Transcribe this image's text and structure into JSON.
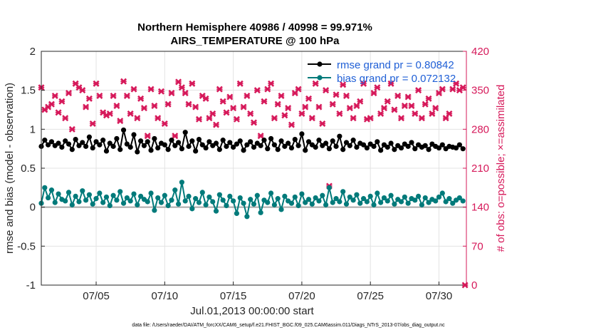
{
  "chart_data": {
    "type": "line",
    "title": "Northern Hemisphere 40986 / 40998 = 99.971%",
    "subtitle": "AIRS_TEMPERATURE @ 100 hPa",
    "xlabel": "Jul.01,2013 00:00:00 start",
    "ylabel": "rmse and bias (model - observation)",
    "ylabel_right": "# of obs: o=possible; ×=assimilated",
    "footer": "data file: /Users/raeder/DAI/ATM_forcXX/CAM6_setup/f.e21.FHIST_BGC.f09_025.CAM6assim.011/Diags_NTrS_2013-07/obs_diag_output.nc",
    "xlim": [
      1,
      32
    ],
    "ylim": [
      -1,
      2
    ],
    "ylim_right": [
      0,
      420
    ],
    "grid": true,
    "x_ticks": [
      5,
      10,
      15,
      20,
      25,
      30
    ],
    "x_tick_labels": [
      "07/05",
      "07/10",
      "07/15",
      "07/20",
      "07/25",
      "07/30"
    ],
    "y_ticks": [
      -1,
      -0.5,
      0,
      0.5,
      1,
      1.5,
      2
    ],
    "y_tick_labels": [
      "-1",
      "-0.5",
      "0",
      "0.5",
      "1",
      "1.5",
      "2"
    ],
    "y_ticks_right": [
      0,
      70,
      140,
      210,
      280,
      350,
      420
    ],
    "y_tick_labels_right": [
      "0",
      "70",
      "140",
      "210",
      "280",
      "350",
      "420"
    ],
    "x": [
      1.0,
      1.25,
      1.5,
      1.75,
      2.0,
      2.25,
      2.5,
      2.75,
      3.0,
      3.25,
      3.5,
      3.75,
      4.0,
      4.25,
      4.5,
      4.75,
      5.0,
      5.25,
      5.5,
      5.75,
      6.0,
      6.25,
      6.5,
      6.75,
      7.0,
      7.25,
      7.5,
      7.75,
      8.0,
      8.25,
      8.5,
      8.75,
      9.0,
      9.25,
      9.5,
      9.75,
      10.0,
      10.25,
      10.5,
      10.75,
      11.0,
      11.25,
      11.5,
      11.75,
      12.0,
      12.25,
      12.5,
      12.75,
      13.0,
      13.25,
      13.5,
      13.75,
      14.0,
      14.25,
      14.5,
      14.75,
      15.0,
      15.25,
      15.5,
      15.75,
      16.0,
      16.25,
      16.5,
      16.75,
      17.0,
      17.25,
      17.5,
      17.75,
      18.0,
      18.25,
      18.5,
      18.75,
      19.0,
      19.25,
      19.5,
      19.75,
      20.0,
      20.25,
      20.5,
      20.75,
      21.0,
      21.25,
      21.5,
      21.75,
      22.0,
      22.25,
      22.5,
      22.75,
      23.0,
      23.25,
      23.5,
      23.75,
      24.0,
      24.25,
      24.5,
      24.75,
      25.0,
      25.25,
      25.5,
      25.75,
      26.0,
      26.25,
      26.5,
      26.75,
      27.0,
      27.25,
      27.5,
      27.75,
      28.0,
      28.25,
      28.5,
      28.75,
      29.0,
      29.25,
      29.5,
      29.75,
      30.0,
      30.25,
      30.5,
      30.75,
      31.0,
      31.25,
      31.5,
      31.75
    ],
    "series": [
      {
        "name": "rmse",
        "label": "rmse grand pr = 0.80842",
        "color": "#000000",
        "marker": "circle",
        "values": [
          0.78,
          0.86,
          0.8,
          0.84,
          0.79,
          0.82,
          0.77,
          0.85,
          0.81,
          0.74,
          0.87,
          0.79,
          0.83,
          0.78,
          0.9,
          0.76,
          0.84,
          0.8,
          0.86,
          0.72,
          0.82,
          0.78,
          0.88,
          0.74,
          0.99,
          0.81,
          0.77,
          0.93,
          0.71,
          0.85,
          0.79,
          0.84,
          0.73,
          0.88,
          0.76,
          0.82,
          0.8,
          0.74,
          0.86,
          0.79,
          0.83,
          0.75,
          0.96,
          0.78,
          0.85,
          0.72,
          0.87,
          0.8,
          0.76,
          0.84,
          0.79,
          0.82,
          0.74,
          0.86,
          0.78,
          0.83,
          0.77,
          0.81,
          0.85,
          0.73,
          0.8,
          0.84,
          0.77,
          0.82,
          0.79,
          0.86,
          0.75,
          0.88,
          0.8,
          0.74,
          0.85,
          0.78,
          0.82,
          0.76,
          0.87,
          0.79,
          0.94,
          0.73,
          0.84,
          0.8,
          0.77,
          0.86,
          0.79,
          0.82,
          0.75,
          0.85,
          0.78,
          0.91,
          0.74,
          0.83,
          0.79,
          0.86,
          0.77,
          0.82,
          0.8,
          0.76,
          0.81,
          0.78,
          0.84,
          0.73,
          0.8,
          0.77,
          0.82,
          0.74,
          0.79,
          0.76,
          0.81,
          0.78,
          0.83,
          0.75,
          0.8,
          0.77,
          0.79,
          0.74,
          0.81,
          0.78,
          0.76,
          0.8,
          0.75,
          0.78,
          0.77,
          0.76,
          0.8,
          0.75
        ]
      },
      {
        "name": "bias",
        "label": "bias grand pr = 0.072132",
        "color": "#007a7a",
        "marker": "circle",
        "values": [
          0.05,
          0.25,
          0.12,
          0.22,
          0.06,
          0.17,
          0.1,
          0.08,
          0.19,
          0.03,
          0.14,
          0.07,
          0.21,
          0.09,
          0.16,
          0.04,
          0.11,
          0.18,
          0.06,
          0.13,
          0.02,
          0.15,
          0.09,
          0.2,
          0.05,
          0.12,
          0.08,
          0.17,
          0.03,
          0.14,
          0.1,
          0.07,
          0.18,
          -0.04,
          0.12,
          0.06,
          0.15,
          0.02,
          0.09,
          0.22,
          0.04,
          0.32,
          0.08,
          0.14,
          -0.02,
          0.11,
          0.06,
          0.19,
          0.03,
          0.13,
          0.07,
          -0.05,
          0.16,
          0.09,
          0.02,
          0.14,
          0.08,
          -0.08,
          0.12,
          0.05,
          -0.12,
          0.1,
          0.04,
          0.15,
          -0.07,
          0.09,
          0.06,
          0.18,
          0.03,
          0.11,
          -0.03,
          0.14,
          0.08,
          0.05,
          0.13,
          0.02,
          0.17,
          0.06,
          0.1,
          0.04,
          0.12,
          0.08,
          0.15,
          0.03,
          0.25,
          0.06,
          0.11,
          0.07,
          0.2,
          0.04,
          0.13,
          0.09,
          0.16,
          0.05,
          0.11,
          0.07,
          0.14,
          0.03,
          0.18,
          0.06,
          0.12,
          0.08,
          0.15,
          0.04,
          0.1,
          0.07,
          0.13,
          0.05,
          0.11,
          0.09,
          0.14,
          0.03,
          0.12,
          0.06,
          0.1,
          0.08,
          0.13,
          0.18,
          0.07,
          0.11,
          0.05,
          0.09,
          0.12,
          0.08
        ]
      },
      {
        "name": "obs_count",
        "label": "# of obs",
        "axis": "right",
        "color": "#d6195a",
        "marker": "x",
        "values": [
          355,
          315,
          320,
          325,
          340,
          310,
          330,
          300,
          345,
          280,
          362,
          355,
          350,
          320,
          335,
          290,
          362,
          340,
          310,
          305,
          308,
          340,
          322,
          295,
          366,
          340,
          308,
          352,
          300,
          335,
          318,
          268,
          352,
          322,
          300,
          348,
          290,
          325,
          345,
          268,
          365,
          355,
          345,
          325,
          362,
          320,
          298,
          340,
          335,
          300,
          308,
          288,
          352,
          330,
          310,
          338,
          318,
          298,
          362,
          320,
          340,
          308,
          292,
          350,
          268,
          330,
          352,
          362,
          300,
          325,
          340,
          305,
          318,
          288,
          345,
          352,
          308,
          320,
          335,
          300,
          362,
          320,
          290,
          350,
          178,
          325,
          342,
          308,
          360,
          340,
          318,
          300,
          322,
          330,
          362,
          298,
          300,
          345,
          355,
          308,
          318,
          330,
          362,
          315,
          340,
          300,
          322,
          338,
          322,
          308,
          350,
          300,
          325,
          335,
          308,
          318,
          345,
          352,
          300,
          308,
          352,
          362,
          350,
          355
        ],
        "outliers": [
          {
            "x": 31.9,
            "value": 0
          }
        ]
      }
    ]
  }
}
